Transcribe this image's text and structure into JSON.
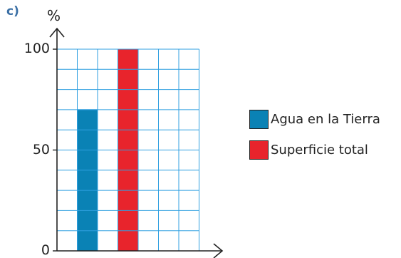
{
  "part_label": "c)",
  "chart_data": {
    "type": "bar",
    "ylabel": "%",
    "ylim": [
      0,
      100
    ],
    "y_ticks": [
      {
        "value": 0,
        "label": "0"
      },
      {
        "value": 50,
        "label": "50"
      },
      {
        "value": 100,
        "label": "100"
      }
    ],
    "grid": true,
    "grid_color": "#2f9fe0",
    "series": [
      {
        "name": "Agua en la Tierra",
        "value": 70,
        "color": "#0a82b5"
      },
      {
        "name": "Superficie total",
        "value": 100,
        "color": "#e8242c"
      }
    ],
    "legend": "right"
  }
}
